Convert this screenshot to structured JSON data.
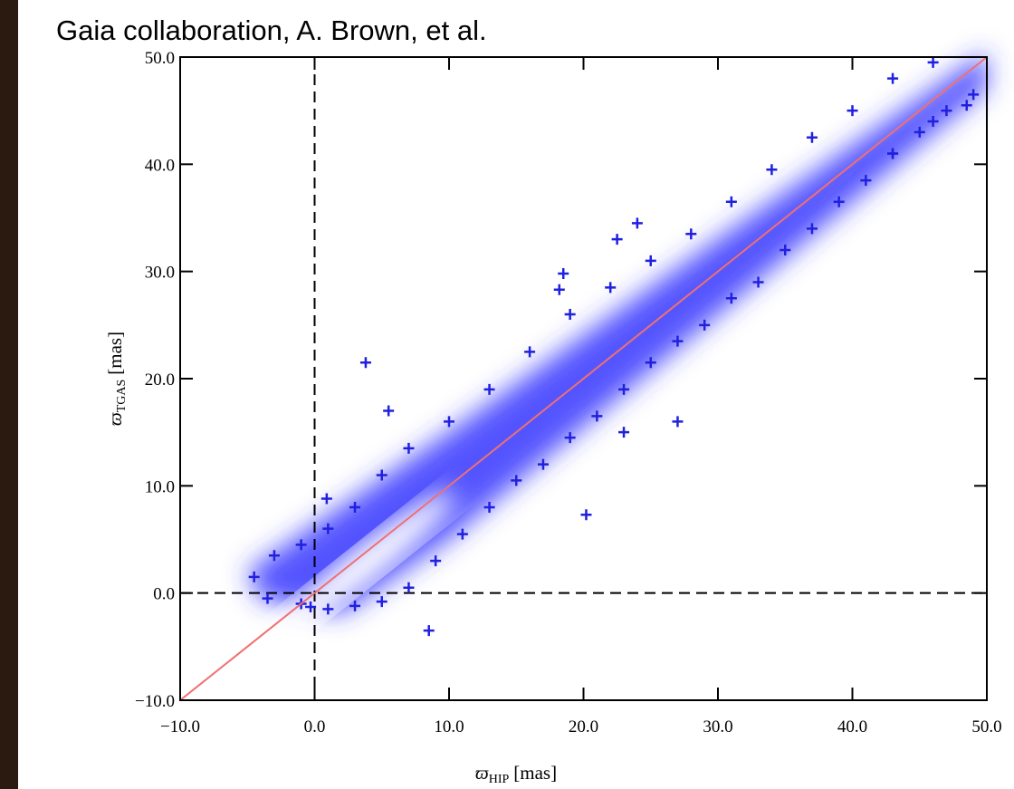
{
  "title": "Gaia collaboration, A. Brown, et al.",
  "chart_data": {
    "type": "scatter",
    "x_label": {
      "symbol": "ϖ",
      "subscript": "HIP",
      "unit": "[mas]"
    },
    "y_label": {
      "symbol": "ϖ",
      "subscript": "TGAS",
      "unit": "[mas]"
    },
    "xlim": [
      -10,
      50
    ],
    "ylim": [
      -10,
      50
    ],
    "xticks": [
      {
        "value": -10,
        "label": "−10.0"
      },
      {
        "value": 0,
        "label": "0.0"
      },
      {
        "value": 10,
        "label": "10.0"
      },
      {
        "value": 20,
        "label": "20.0"
      },
      {
        "value": 30,
        "label": "30.0"
      },
      {
        "value": 40,
        "label": "40.0"
      },
      {
        "value": 50,
        "label": "50.0"
      }
    ],
    "yticks": [
      {
        "value": -10,
        "label": "−10.0"
      },
      {
        "value": 0,
        "label": "0.0"
      },
      {
        "value": 10,
        "label": "10.0"
      },
      {
        "value": 20,
        "label": "20.0"
      },
      {
        "value": 30,
        "label": "30.0"
      },
      {
        "value": 40,
        "label": "40.0"
      },
      {
        "value": 50,
        "label": "50.0"
      }
    ],
    "hlines": [
      0
    ],
    "vlines": [
      0
    ],
    "identity_line": true,
    "identity_color": "#f07070",
    "series": [
      {
        "color": "#2020e0",
        "x": [
          -4.5,
          -3,
          -1,
          1,
          3,
          5,
          7,
          10,
          13,
          16,
          19,
          22,
          25,
          28,
          31,
          34,
          37,
          40,
          43,
          46,
          -3.5,
          -1,
          1,
          3,
          5,
          7,
          9,
          11,
          13,
          15,
          17,
          19,
          21,
          23,
          25,
          27,
          29,
          31,
          33,
          35,
          37,
          39,
          41,
          43,
          45,
          47,
          49,
          3.8,
          5.5,
          8.5,
          20.2,
          27,
          23,
          22.5,
          24,
          18.5,
          18.2,
          -0.3,
          0.9,
          48.5,
          46,
          43
        ],
        "y": [
          1.5,
          3.5,
          4.5,
          6,
          8,
          11,
          13.5,
          16,
          19,
          22.5,
          26,
          28.5,
          31,
          33.5,
          36.5,
          39.5,
          42.5,
          45,
          48,
          49.5,
          -0.5,
          -1,
          -1.5,
          -1.2,
          -0.8,
          0.5,
          3,
          5.5,
          8,
          10.5,
          12,
          14.5,
          16.5,
          19,
          21.5,
          23.5,
          25,
          27.5,
          29,
          32,
          34,
          36.5,
          38.5,
          41,
          43,
          45,
          46.5,
          21.5,
          17,
          -3.5,
          7.3,
          16,
          15,
          33,
          34.5,
          29.8,
          28.3,
          -1.3,
          8.8,
          45.5,
          44,
          41
        ]
      }
    ]
  }
}
